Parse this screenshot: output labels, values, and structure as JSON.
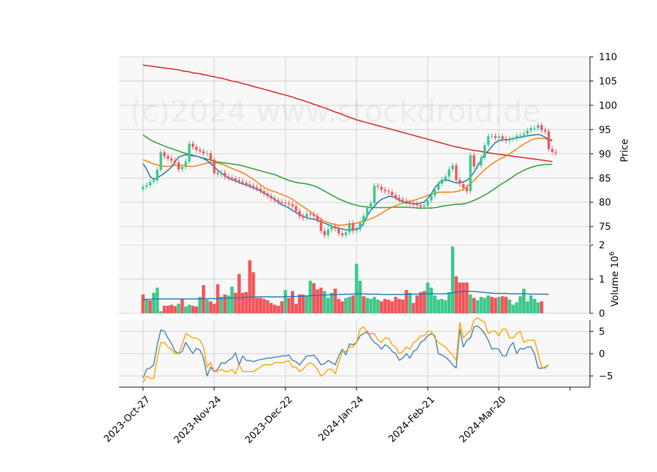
{
  "watermark": "(c)2024 www.stockdroid.de",
  "colors": {
    "up": "#3cc88a",
    "down": "#f2555a",
    "ma_fast": "#1f77b4",
    "ma_mid": "#ff7f0e",
    "ma_slow": "#2ca02c",
    "ma_long": "#d62728",
    "vol_ma": "#1f77b4",
    "osc_a": "#4682b4",
    "osc_b": "#ffa500",
    "panel_bg": "#f8f8f8",
    "grid": "#d0d0d0"
  },
  "chart_data": {
    "type": "candlestick",
    "x_labels": [
      "2023-Oct-27",
      "2023-Nov-24",
      "2023-Dec-22",
      "2024-Jan-24",
      "2024-Feb-21",
      "2024-Mar-20"
    ],
    "x_label_index": [
      0,
      20,
      40,
      60,
      80,
      100
    ],
    "price_panel": {
      "ylabel": "Price",
      "ylim": [
        71.5,
        110
      ],
      "yticks": [
        75,
        80,
        85,
        90,
        95,
        100,
        105,
        110
      ],
      "close": [
        83.2,
        83.5,
        84.2,
        84.5,
        86.7,
        90.3,
        89.5,
        89.0,
        88.6,
        88.2,
        86.8,
        87.3,
        88.4,
        92.1,
        91.4,
        90.8,
        90.5,
        90.1,
        90.1,
        88.8,
        86.0,
        85.8,
        86.1,
        85.3,
        85.1,
        84.9,
        84.6,
        84.3,
        84.0,
        83.7,
        83.4,
        83.1,
        82.8,
        82.3,
        81.8,
        81.3,
        80.8,
        80.4,
        80.1,
        79.9,
        79.8,
        79.6,
        79.2,
        78.2,
        77.1,
        76.8,
        77.6,
        77.5,
        77.2,
        76.3,
        74.1,
        73.2,
        74.4,
        75.1,
        74.6,
        73.6,
        73.2,
        73.8,
        75.7,
        74.1,
        74.4,
        75.7,
        77.2,
        78.8,
        79.8,
        83.4,
        83.2,
        82.6,
        82.3,
        82.1,
        81.5,
        81.0,
        80.6,
        80.3,
        80.0,
        79.7,
        79.6,
        79.4,
        79.1,
        79.3,
        80.4,
        81.4,
        82.6,
        83.8,
        84.7,
        85.3,
        86.8,
        87.6,
        84.6,
        83.8,
        83.0,
        82.3,
        89.7,
        87.4,
        87.6,
        89.2,
        91.8,
        93.6,
        93.7,
        93.3,
        93.6,
        93.1,
        92.7,
        93.1,
        93.1,
        93.7,
        93.8,
        94.1,
        94.8,
        95.3,
        95.3,
        95.9,
        94.9,
        94.6,
        91.0,
        90.4,
        90.2
      ],
      "ma_fast": [
        88.0,
        86.8,
        85.3,
        84.7,
        85.1,
        85.5,
        86.0,
        86.6,
        87.3,
        88.4,
        89.3,
        89.6,
        89.8,
        89.7,
        89.6,
        89.5,
        89.3,
        89.0,
        88.6,
        88.0,
        87.3,
        86.6,
        86.0,
        85.5,
        85.0,
        84.7,
        84.4,
        84.1,
        83.8,
        83.6,
        83.3,
        83.0,
        82.7,
        82.3,
        81.9,
        81.5,
        81.1,
        80.6,
        80.0,
        79.5,
        79.2,
        78.8,
        78.3,
        77.9,
        77.5,
        77.1,
        76.8,
        76.6,
        76.5,
        76.3,
        76.0,
        75.7,
        75.4,
        75.1,
        74.8,
        74.6,
        74.5,
        74.3,
        74.3,
        74.4,
        74.5,
        74.7,
        75.7,
        77.2,
        78.3,
        79.2,
        80.0,
        80.6,
        80.9,
        81.2,
        81.2,
        80.9,
        80.4,
        80.1,
        79.9,
        79.8,
        79.7,
        79.7,
        79.8,
        80.1,
        80.8,
        81.8,
        83.0,
        83.9,
        84.4,
        84.6,
        84.5,
        84.2,
        84.0,
        84.1,
        84.2,
        84.5,
        85.2,
        86.2,
        87.5,
        88.7,
        90.0,
        90.6,
        91.5,
        92.3,
        92.7,
        92.9,
        92.9,
        93.0,
        93.1,
        93.3,
        93.4,
        93.6,
        93.7,
        93.8,
        93.9,
        94.0,
        93.8,
        93.4,
        93.0,
        92.8
      ],
      "ma_mid": [
        88.8,
        88.5,
        88.2,
        87.9,
        87.7,
        87.5,
        87.4,
        87.4,
        87.5,
        87.6,
        87.6,
        87.6,
        87.5,
        87.4,
        87.4,
        87.5,
        87.7,
        87.9,
        88.1,
        88.2,
        88.2,
        88.1,
        87.9,
        87.6,
        87.3,
        87.0,
        86.7,
        86.4,
        86.1,
        85.7,
        85.2,
        84.7,
        84.2,
        83.6,
        83.1,
        82.7,
        82.4,
        82.2,
        81.9,
        81.6,
        81.3,
        81.0,
        80.6,
        80.1,
        79.6,
        79.1,
        78.6,
        78.1,
        77.5,
        77.0,
        76.5,
        76.1,
        75.8,
        75.6,
        75.4,
        75.3,
        75.3,
        75.4,
        75.5,
        75.6,
        75.7,
        75.9,
        76.1,
        76.3,
        76.6,
        76.9,
        77.3,
        77.7,
        78.2,
        78.6,
        79.0,
        79.3,
        79.6,
        79.8,
        80.0,
        80.2,
        80.4,
        80.6,
        80.9,
        81.1,
        81.4,
        81.7,
        81.9,
        82.0,
        82.1,
        82.1,
        82.1,
        82.1,
        82.2,
        82.4,
        82.7,
        83.2,
        83.8,
        84.5,
        85.3,
        86.0,
        86.7,
        87.3,
        87.9,
        88.4,
        88.8,
        89.2,
        89.6,
        90.0,
        90.5,
        91.0,
        91.5,
        92.0,
        92.4,
        92.8,
        93.1,
        93.2,
        93.2,
        93.1,
        92.9,
        92.6
      ],
      "ma_slow": [
        93.9,
        93.4,
        92.9,
        92.5,
        92.2,
        91.9,
        91.6,
        91.3,
        91.1,
        90.8,
        90.6,
        90.3,
        90.1,
        89.9,
        89.7,
        89.5,
        89.3,
        89.1,
        88.9,
        88.7,
        88.5,
        88.3,
        88.2,
        88.1,
        88.0,
        87.9,
        87.8,
        87.7,
        87.5,
        87.3,
        87.1,
        86.9,
        86.7,
        86.5,
        86.3,
        86.1,
        85.9,
        85.7,
        85.4,
        85.1,
        84.8,
        84.5,
        84.3,
        84.1,
        84.0,
        83.9,
        83.8,
        83.6,
        83.4,
        83.1,
        82.7,
        82.3,
        81.9,
        81.5,
        81.1,
        80.7,
        80.4,
        80.1,
        79.8,
        79.6,
        79.4,
        79.2,
        79.1,
        79.0,
        78.9,
        78.9,
        78.9,
        78.9,
        78.9,
        78.9,
        79.0,
        79.0,
        79.0,
        79.0,
        79.0,
        78.9,
        78.9,
        78.8,
        78.8,
        78.8,
        78.8,
        78.8,
        78.9,
        79.0,
        79.2,
        79.3,
        79.4,
        79.5,
        79.6,
        79.6,
        79.7,
        79.8,
        80.1,
        80.4,
        80.7,
        81.1,
        81.5,
        81.9,
        82.4,
        82.9,
        83.4,
        83.9,
        84.3,
        84.8,
        85.3,
        85.8,
        86.2,
        86.6,
        86.9,
        87.2,
        87.4,
        87.6,
        87.7,
        87.8,
        87.8,
        87.8
      ],
      "ma_long": [
        108.3,
        108.2,
        108.1,
        108.0,
        107.9,
        107.8,
        107.7,
        107.6,
        107.5,
        107.4,
        107.3,
        107.1,
        107.0,
        106.9,
        106.7,
        106.6,
        106.5,
        106.3,
        106.2,
        106.0,
        105.9,
        105.7,
        105.6,
        105.4,
        105.2,
        105.0,
        104.9,
        104.7,
        104.5,
        104.3,
        104.1,
        103.9,
        103.7,
        103.5,
        103.3,
        103.1,
        102.9,
        102.7,
        102.5,
        102.3,
        102.1,
        101.9,
        101.7,
        101.4,
        101.2,
        101.0,
        100.7,
        100.5,
        100.2,
        100.0,
        99.7,
        99.5,
        99.2,
        98.9,
        98.6,
        98.4,
        98.1,
        97.8,
        97.5,
        97.3,
        97.0,
        96.8,
        96.6,
        96.4,
        96.2,
        96.0,
        95.8,
        95.6,
        95.4,
        95.2,
        95.0,
        94.8,
        94.6,
        94.4,
        94.2,
        94.0,
        93.8,
        93.6,
        93.4,
        93.2,
        93.0,
        92.8,
        92.6,
        92.4,
        92.2,
        92.0,
        91.8,
        91.6,
        91.4,
        91.3,
        91.1,
        91.0,
        90.8,
        90.7,
        90.6,
        90.5,
        90.3,
        90.2,
        90.1,
        90.0,
        89.9,
        89.8,
        89.7,
        89.6,
        89.5,
        89.4,
        89.3,
        89.2,
        89.1,
        89.0,
        88.9,
        88.8,
        88.7,
        88.6,
        88.5,
        88.4
      ]
    },
    "volume_panel": {
      "ylabel": "Volume",
      "ylabel_exp": "6",
      "ylim": [
        0,
        2
      ],
      "yticks": [
        0,
        1,
        2
      ],
      "volume": [
        0.55,
        0.4,
        0.38,
        0.6,
        0.75,
        0.06,
        0.22,
        0.22,
        0.25,
        0.21,
        0.28,
        0.42,
        0.2,
        0.25,
        0.22,
        0.2,
        0.48,
        0.82,
        0.4,
        0.35,
        0.28,
        0.85,
        0.48,
        0.55,
        0.52,
        0.78,
        0.6,
        1.15,
        0.6,
        0.62,
        1.55,
        1.2,
        0.45,
        0.45,
        0.42,
        0.38,
        0.3,
        0.25,
        0.22,
        0.35,
        0.68,
        0.45,
        0.65,
        0.28,
        0.55,
        0.55,
        0.5,
        0.95,
        0.88,
        0.7,
        0.75,
        0.65,
        0.45,
        0.6,
        0.72,
        0.42,
        0.35,
        0.45,
        0.48,
        0.52,
        1.45,
        0.95,
        0.5,
        0.45,
        0.42,
        0.48,
        0.4,
        0.35,
        0.42,
        0.4,
        0.35,
        0.48,
        0.42,
        0.4,
        0.68,
        0.6,
        0.3,
        0.52,
        0.62,
        0.65,
        0.9,
        0.75,
        0.52,
        0.4,
        0.42,
        0.38,
        0.62,
        1.95,
        1.08,
        0.9,
        0.9,
        0.9,
        0.55,
        0.45,
        0.38,
        0.48,
        0.45,
        0.52,
        0.48,
        0.45,
        0.48,
        0.5,
        0.48,
        0.4,
        0.25,
        0.32,
        0.5,
        0.72,
        0.35,
        0.52,
        0.42,
        0.32,
        0.35
      ],
      "direction": [
        -1,
        1,
        -1,
        1,
        1,
        1,
        -1,
        -1,
        -1,
        -1,
        1,
        -1,
        1,
        1,
        -1,
        -1,
        1,
        -1,
        1,
        -1,
        -1,
        -1,
        1,
        -1,
        1,
        1,
        -1,
        -1,
        -1,
        -1,
        -1,
        -1,
        -1,
        -1,
        -1,
        -1,
        -1,
        -1,
        -1,
        -1,
        1,
        -1,
        -1,
        -1,
        -1,
        -1,
        1,
        1,
        -1,
        -1,
        -1,
        1,
        1,
        1,
        -1,
        -1,
        -1,
        1,
        1,
        -1,
        1,
        1,
        -1,
        1,
        1,
        1,
        1,
        -1,
        -1,
        -1,
        -1,
        -1,
        -1,
        -1,
        -1,
        1,
        -1,
        -1,
        -1,
        -1,
        1,
        1,
        1,
        1,
        1,
        1,
        1,
        1,
        -1,
        -1,
        -1,
        -1,
        1,
        -1,
        1,
        1,
        1,
        1,
        -1,
        -1,
        1,
        -1,
        -1,
        1,
        1,
        1,
        1,
        1,
        1,
        1,
        1,
        1,
        -1,
        -1,
        -1,
        -1,
        1
      ],
      "vol_ma": [
        0.4,
        0.41,
        0.41,
        0.42,
        0.42,
        0.42,
        0.42,
        0.42,
        0.42,
        0.42,
        0.42,
        0.42,
        0.42,
        0.42,
        0.42,
        0.42,
        0.42,
        0.42,
        0.43,
        0.43,
        0.43,
        0.43,
        0.44,
        0.44,
        0.44,
        0.45,
        0.45,
        0.46,
        0.46,
        0.47,
        0.47,
        0.48,
        0.48,
        0.48,
        0.48,
        0.48,
        0.48,
        0.48,
        0.48,
        0.48,
        0.49,
        0.49,
        0.49,
        0.49,
        0.5,
        0.5,
        0.51,
        0.51,
        0.52,
        0.52,
        0.53,
        0.53,
        0.54,
        0.54,
        0.55,
        0.55,
        0.55,
        0.56,
        0.56,
        0.56,
        0.57,
        0.57,
        0.57,
        0.56,
        0.56,
        0.56,
        0.56,
        0.55,
        0.55,
        0.55,
        0.55,
        0.55,
        0.55,
        0.55,
        0.56,
        0.56,
        0.56,
        0.56,
        0.56,
        0.57,
        0.57,
        0.57,
        0.57,
        0.57,
        0.57,
        0.57,
        0.58,
        0.6,
        0.62,
        0.63,
        0.64,
        0.64,
        0.64,
        0.64,
        0.63,
        0.62,
        0.61,
        0.6,
        0.59,
        0.58,
        0.58,
        0.58,
        0.58,
        0.57,
        0.57,
        0.57,
        0.57,
        0.57,
        0.57,
        0.56,
        0.56,
        0.56,
        0.56,
        0.56,
        0.55
      ]
    },
    "oscillator_panel": {
      "ylim": [
        -7.5,
        7.5
      ],
      "yticks": [
        -5,
        0,
        5
      ],
      "line_a": [
        -5.5,
        -3.5,
        -3.2,
        -2.5,
        2.0,
        5.3,
        5.0,
        3.5,
        2.2,
        0.5,
        0.0,
        0.5,
        2.5,
        1.2,
        0.0,
        1.2,
        0.8,
        -1.0,
        -5.0,
        -3.0,
        -4.0,
        -3.5,
        -2.0,
        -2.2,
        -1.5,
        -1.0,
        0.2,
        -2.5,
        -0.5,
        -1.5,
        -1.5,
        -1.8,
        -1.5,
        -1.3,
        -1.2,
        -1.0,
        -1.0,
        -0.8,
        -0.7,
        -0.5,
        -0.5,
        -0.3,
        -1.5,
        -1.8,
        -2.5,
        -1.5,
        -0.5,
        -0.5,
        -0.3,
        -1.2,
        -2.5,
        -2.2,
        -1.5,
        -2.0,
        -2.5,
        -0.5,
        1.0,
        -0.3,
        2.2,
        2.0,
        2.5,
        4.0,
        4.5,
        5.0,
        3.5,
        2.5,
        2.0,
        1.0,
        2.0,
        1.5,
        0.5,
        0.0,
        -1.5,
        -1.0,
        0.0,
        -1.0,
        0.5,
        1.0,
        2.5,
        3.0,
        4.0,
        4.5,
        4.0,
        0.0,
        -0.3,
        -0.8,
        -1.5,
        -2.5,
        -3.2,
        5.5,
        1.5,
        3.0,
        3.5,
        6.0,
        6.2,
        5.5,
        4.5,
        3.0,
        1.0,
        1.2,
        1.0,
        -0.5,
        -0.5,
        1.5,
        2.5,
        0.0,
        1.2,
        1.0,
        1.5,
        1.5,
        0.0,
        -3.2,
        -3.3,
        -3.0,
        -2.5
      ],
      "line_b": [
        -6.5,
        -5.0,
        -5.5,
        -5.5,
        -1.0,
        2.5,
        2.5,
        1.5,
        1.0,
        0.0,
        0.0,
        2.0,
        4.5,
        4.0,
        3.5,
        3.5,
        3.0,
        1.5,
        -3.0,
        -2.0,
        -4.0,
        -4.0,
        -3.5,
        -4.0,
        -4.0,
        -3.5,
        -4.5,
        -2.5,
        -4.0,
        -4.0,
        -4.0,
        -4.0,
        -3.5,
        -3.0,
        -2.5,
        -2.5,
        -2.5,
        -2.0,
        -2.0,
        -2.0,
        -1.8,
        -1.5,
        -3.0,
        -3.0,
        -4.0,
        -3.5,
        -2.5,
        -2.0,
        -2.5,
        -3.5,
        -5.0,
        -4.5,
        -3.5,
        -3.5,
        -4.5,
        -2.0,
        0.5,
        0.5,
        1.5,
        1.5,
        2.5,
        5.5,
        6.0,
        4.5,
        4.5,
        4.5,
        3.0,
        2.5,
        3.5,
        3.5,
        2.0,
        1.5,
        0.0,
        0.5,
        1.5,
        1.0,
        2.5,
        3.0,
        4.0,
        4.0,
        5.0,
        5.0,
        3.5,
        2.5,
        2.0,
        1.5,
        0.5,
        -0.3,
        -1.5,
        7.0,
        3.5,
        4.5,
        5.0,
        7.5,
        8.0,
        7.5,
        7.0,
        4.5,
        5.0,
        5.0,
        4.0,
        5.5,
        5.5,
        3.5,
        3.5,
        4.5,
        5.0,
        2.5,
        3.0,
        3.0,
        3.0,
        0.0,
        -3.0,
        -3.3,
        -2.5
      ]
    }
  }
}
